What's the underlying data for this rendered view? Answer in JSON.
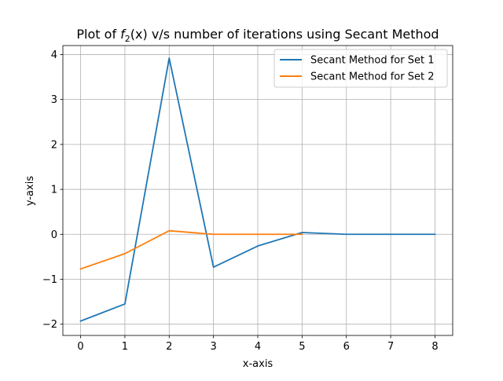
{
  "chart_data": {
    "type": "line",
    "title": {
      "prefix": "Plot of ",
      "func": "f",
      "subscript": "2",
      "suffix": "(x) v/s number of iterations using Secant Method"
    },
    "xlabel": "x-axis",
    "ylabel": "y-axis",
    "xlim": [
      -0.4,
      8.4
    ],
    "ylim": [
      -2.25,
      4.2
    ],
    "x_ticks": [
      0,
      1,
      2,
      3,
      4,
      5,
      6,
      7,
      8
    ],
    "x_tick_labels": [
      "0",
      "1",
      "2",
      "3",
      "4",
      "5",
      "6",
      "7",
      "8"
    ],
    "y_ticks": [
      -2,
      -1,
      0,
      1,
      2,
      3,
      4
    ],
    "y_tick_labels": [
      "−2",
      "−1",
      "0",
      "1",
      "2",
      "3",
      "4"
    ],
    "grid": true,
    "legend_position": "top-right",
    "series": [
      {
        "name": "Secant Method for Set 1",
        "color": "#1f77b4",
        "x": [
          0,
          1,
          2,
          3,
          4,
          5,
          6,
          7,
          8
        ],
        "y": [
          -1.93,
          -1.55,
          3.92,
          -0.73,
          -0.26,
          0.04,
          0.0,
          0.0,
          0.0
        ]
      },
      {
        "name": "Secant Method for Set 2",
        "color": "#ff7f0e",
        "x": [
          0,
          1,
          2,
          3,
          4,
          5
        ],
        "y": [
          -0.77,
          -0.43,
          0.08,
          0.0,
          0.0,
          0.0
        ]
      }
    ]
  }
}
